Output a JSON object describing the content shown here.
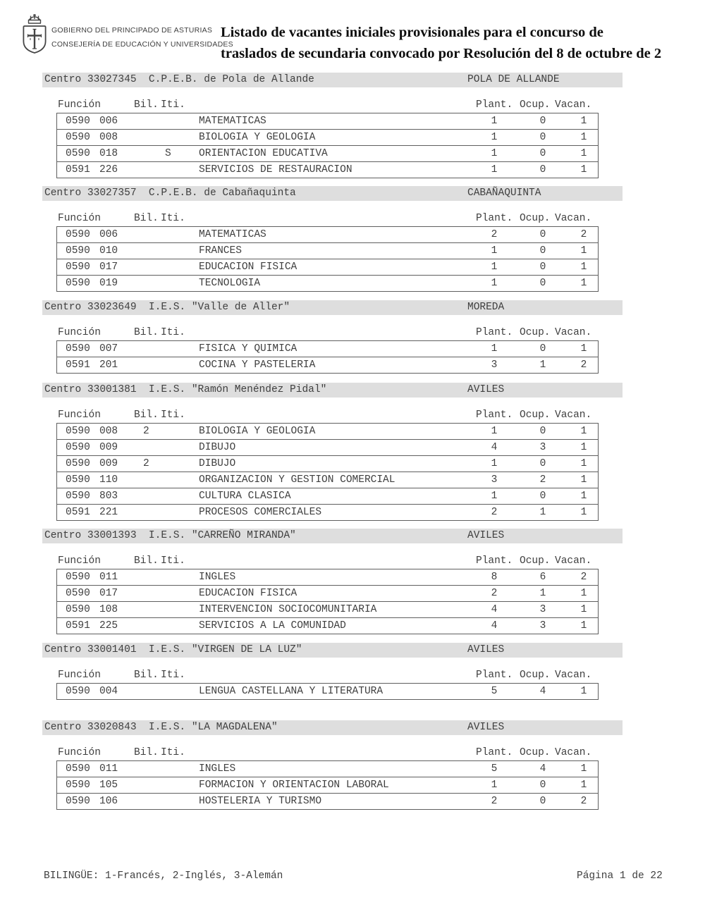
{
  "header": {
    "logo_icon": "asturias-coat-of-arms",
    "org_line1": "GOBIERNO DEL PRINCIPADO DE ASTURIAS",
    "org_line2": "CONSEJERÍA DE EDUCACIÓN Y UNIVERSIDADES",
    "title_line1": "Listado de vacantes iniciales provisionales para el concurso de",
    "title_line2": "traslados de secundaria convocado por Resolución del 8 de octubre de 2"
  },
  "columns": {
    "centro_prefix": "Centro",
    "funcion": "Función",
    "bil": "Bil.",
    "iti": "Iti.",
    "plant": "Plant.",
    "ocup": "Ocup.",
    "vacan": "Vacan."
  },
  "centros": [
    {
      "code": "33027345",
      "name": "C.P.E.B. de Pola de Allande",
      "city": "POLA DE ALLANDE",
      "rows": [
        {
          "cuerpo": "0590",
          "esp": "006",
          "bil": "",
          "iti": "",
          "materia": "MATEMATICAS",
          "plant": "1",
          "ocup": "0",
          "vacan": "1"
        },
        {
          "cuerpo": "0590",
          "esp": "008",
          "bil": "",
          "iti": "",
          "materia": "BIOLOGIA Y GEOLOGIA",
          "plant": "1",
          "ocup": "0",
          "vacan": "1"
        },
        {
          "cuerpo": "0590",
          "esp": "018",
          "bil": "",
          "iti": "S",
          "materia": "ORIENTACION EDUCATIVA",
          "plant": "1",
          "ocup": "0",
          "vacan": "1"
        },
        {
          "cuerpo": "0591",
          "esp": "226",
          "bil": "",
          "iti": "",
          "materia": "SERVICIOS DE RESTAURACION",
          "plant": "1",
          "ocup": "0",
          "vacan": "1"
        }
      ]
    },
    {
      "code": "33027357",
      "name": "C.P.E.B. de Cabañaquinta",
      "city": "CABAÑAQUINTA",
      "rows": [
        {
          "cuerpo": "0590",
          "esp": "006",
          "bil": "",
          "iti": "",
          "materia": "MATEMATICAS",
          "plant": "2",
          "ocup": "0",
          "vacan": "2"
        },
        {
          "cuerpo": "0590",
          "esp": "010",
          "bil": "",
          "iti": "",
          "materia": "FRANCES",
          "plant": "1",
          "ocup": "0",
          "vacan": "1"
        },
        {
          "cuerpo": "0590",
          "esp": "017",
          "bil": "",
          "iti": "",
          "materia": "EDUCACION FISICA",
          "plant": "1",
          "ocup": "0",
          "vacan": "1"
        },
        {
          "cuerpo": "0590",
          "esp": "019",
          "bil": "",
          "iti": "",
          "materia": "TECNOLOGIA",
          "plant": "1",
          "ocup": "0",
          "vacan": "1"
        }
      ]
    },
    {
      "code": "33023649",
      "name": "I.E.S. \"Valle de Aller\"",
      "city": "MOREDA",
      "rows": [
        {
          "cuerpo": "0590",
          "esp": "007",
          "bil": "",
          "iti": "",
          "materia": "FISICA Y QUIMICA",
          "plant": "1",
          "ocup": "0",
          "vacan": "1"
        },
        {
          "cuerpo": "0591",
          "esp": "201",
          "bil": "",
          "iti": "",
          "materia": "COCINA Y PASTELERIA",
          "plant": "3",
          "ocup": "1",
          "vacan": "2"
        }
      ]
    },
    {
      "code": "33001381",
      "name": "I.E.S. \"Ramón Menéndez Pidal\"",
      "city": "AVILES",
      "rows": [
        {
          "cuerpo": "0590",
          "esp": "008",
          "bil": "2",
          "iti": "",
          "materia": "BIOLOGIA Y GEOLOGIA",
          "plant": "1",
          "ocup": "0",
          "vacan": "1"
        },
        {
          "cuerpo": "0590",
          "esp": "009",
          "bil": "",
          "iti": "",
          "materia": "DIBUJO",
          "plant": "4",
          "ocup": "3",
          "vacan": "1"
        },
        {
          "cuerpo": "0590",
          "esp": "009",
          "bil": "2",
          "iti": "",
          "materia": "DIBUJO",
          "plant": "1",
          "ocup": "0",
          "vacan": "1"
        },
        {
          "cuerpo": "0590",
          "esp": "110",
          "bil": "",
          "iti": "",
          "materia": "ORGANIZACION Y GESTION COMERCIAL",
          "plant": "3",
          "ocup": "2",
          "vacan": "1"
        },
        {
          "cuerpo": "0590",
          "esp": "803",
          "bil": "",
          "iti": "",
          "materia": "CULTURA CLASICA",
          "plant": "1",
          "ocup": "0",
          "vacan": "1"
        },
        {
          "cuerpo": "0591",
          "esp": "221",
          "bil": "",
          "iti": "",
          "materia": "PROCESOS COMERCIALES",
          "plant": "2",
          "ocup": "1",
          "vacan": "1"
        }
      ]
    },
    {
      "code": "33001393",
      "name": "I.E.S. \"CARREÑO MIRANDA\"",
      "city": "AVILES",
      "rows": [
        {
          "cuerpo": "0590",
          "esp": "011",
          "bil": "",
          "iti": "",
          "materia": "INGLES",
          "plant": "8",
          "ocup": "6",
          "vacan": "2"
        },
        {
          "cuerpo": "0590",
          "esp": "017",
          "bil": "",
          "iti": "",
          "materia": "EDUCACION FISICA",
          "plant": "2",
          "ocup": "1",
          "vacan": "1"
        },
        {
          "cuerpo": "0590",
          "esp": "108",
          "bil": "",
          "iti": "",
          "materia": "INTERVENCION SOCIOCOMUNITARIA",
          "plant": "4",
          "ocup": "3",
          "vacan": "1"
        },
        {
          "cuerpo": "0591",
          "esp": "225",
          "bil": "",
          "iti": "",
          "materia": "SERVICIOS A LA COMUNIDAD",
          "plant": "4",
          "ocup": "3",
          "vacan": "1"
        }
      ]
    },
    {
      "code": "33001401",
      "name": "I.E.S. \"VIRGEN DE LA LUZ\"",
      "city": "AVILES",
      "rows": [
        {
          "cuerpo": "0590",
          "esp": "004",
          "bil": "",
          "iti": "",
          "materia": "LENGUA CASTELLANA Y LITERATURA",
          "plant": "5",
          "ocup": "4",
          "vacan": "1"
        }
      ]
    },
    {
      "code": "33020843",
      "name": "I.E.S. \"LA MAGDALENA\"",
      "city": "AVILES",
      "rows": [
        {
          "cuerpo": "0590",
          "esp": "011",
          "bil": "",
          "iti": "",
          "materia": "INGLES",
          "plant": "5",
          "ocup": "4",
          "vacan": "1"
        },
        {
          "cuerpo": "0590",
          "esp": "105",
          "bil": "",
          "iti": "",
          "materia": "FORMACION Y ORIENTACION LABORAL",
          "plant": "1",
          "ocup": "0",
          "vacan": "1"
        },
        {
          "cuerpo": "0590",
          "esp": "106",
          "bil": "",
          "iti": "",
          "materia": "HOSTELERIA Y TURISMO",
          "plant": "2",
          "ocup": "0",
          "vacan": "2"
        }
      ]
    }
  ],
  "footer": {
    "bilingue_note": "BILINGÜE: 1-Francés, 2-Inglés, 3-Alemán",
    "page_label": "Página 1 de 22"
  },
  "colors": {
    "bar_bg": "#dedede",
    "text": "#3f3f3f",
    "border": "#5f5f5f",
    "title_text": "#0e0e0e"
  }
}
